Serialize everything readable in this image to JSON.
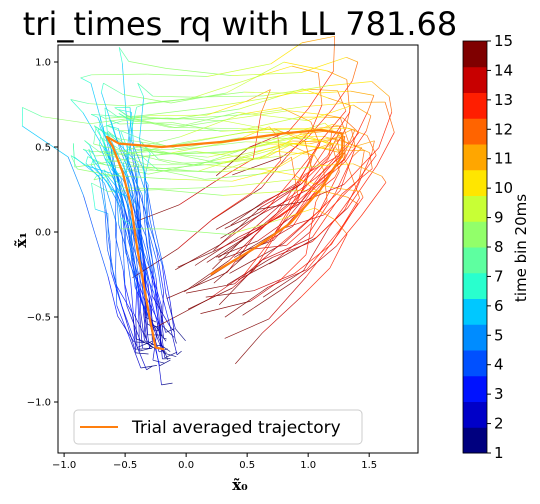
{
  "chart_data": {
    "type": "line",
    "title": "tri_times_rq with LL 781.68",
    "xlabel": "x̃₀",
    "ylabel": "x̃₁",
    "xlim": [
      -1.05,
      1.9
    ],
    "ylim": [
      -1.3,
      1.1
    ],
    "xticks": [
      -1.0,
      -0.5,
      0.0,
      0.5,
      1.0,
      1.5
    ],
    "xtick_labels": [
      "−1.0",
      "−0.5",
      "0.0",
      "0.5",
      "1.0",
      "1.5"
    ],
    "yticks": [
      -1.0,
      -0.5,
      0.0,
      0.5,
      1.0
    ],
    "ytick_labels": [
      "−1.0",
      "−0.5",
      "0.0",
      "0.5",
      "1.0"
    ],
    "grid": false,
    "legend": {
      "placement": "lower-left",
      "entries": [
        "Trial averaged trajectory"
      ]
    },
    "series": [
      {
        "name": "Trial averaged trajectory",
        "color": "#ff7f0e",
        "x": [
          -0.18,
          -0.25,
          -0.3,
          -0.35,
          -0.4,
          -0.45,
          -0.52,
          -0.6,
          -0.65,
          -0.55,
          -0.2,
          0.3,
          0.8,
          1.1,
          1.28,
          1.28,
          1.1,
          0.85,
          0.55,
          0.2
        ],
        "y": [
          -0.69,
          -0.68,
          -0.5,
          -0.3,
          -0.1,
          0.15,
          0.35,
          0.5,
          0.56,
          0.52,
          0.5,
          0.53,
          0.58,
          0.6,
          0.58,
          0.45,
          0.25,
          0.05,
          -0.1,
          -0.25
        ]
      }
    ],
    "colorbar": {
      "label": "time bin 20ms",
      "min": 1,
      "max": 15,
      "tick_labels": [
        "1",
        "2",
        "3",
        "4",
        "5",
        "6",
        "7",
        "8",
        "9",
        "10",
        "11",
        "12",
        "13",
        "14",
        "15"
      ],
      "colors": [
        "#00007f",
        "#0000c8",
        "#0012ff",
        "#0050ff",
        "#008cff",
        "#00c8ff",
        "#29ffce",
        "#5effa0",
        "#92ff6a",
        "#c8ff35",
        "#ffe600",
        "#ffa600",
        "#ff6400",
        "#ff1e00",
        "#c80000",
        "#7f0000"
      ]
    }
  }
}
